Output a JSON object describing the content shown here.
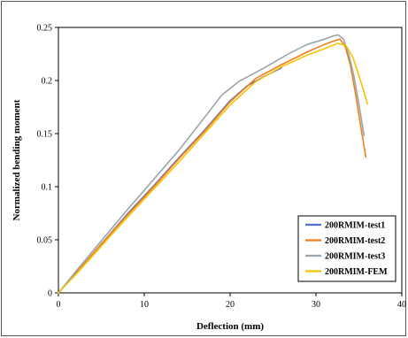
{
  "chart_data": {
    "type": "line",
    "title": "",
    "xlabel": "Deflection (mm)",
    "ylabel": "Normalized bending moment",
    "xlim": [
      0,
      40
    ],
    "ylim": [
      0,
      0.25
    ],
    "xticks": [
      "0",
      "10",
      "20",
      "30",
      "40"
    ],
    "yticks": [
      "0",
      "0.05",
      "0.1",
      "0.15",
      "0.2",
      "0.25"
    ],
    "grid": false,
    "legend_position": "bottom-right",
    "series": [
      {
        "name": "200RMIM-test1",
        "color": "#4a72d8",
        "x": [
          0,
          2,
          5,
          8,
          11,
          14,
          17,
          20,
          22,
          24,
          26
        ],
        "y": [
          0,
          0.018,
          0.046,
          0.074,
          0.1,
          0.127,
          0.153,
          0.181,
          0.195,
          0.204,
          0.212
        ]
      },
      {
        "name": "200RMIM-test2",
        "color": "#f07f1e",
        "x": [
          0,
          2,
          5,
          8,
          11,
          14,
          17,
          20,
          23,
          26,
          29,
          31,
          32,
          32.8,
          33.4,
          34,
          34.6,
          35.2,
          35.8
        ],
        "y": [
          0,
          0.018,
          0.046,
          0.073,
          0.099,
          0.126,
          0.152,
          0.18,
          0.202,
          0.215,
          0.227,
          0.234,
          0.237,
          0.239,
          0.232,
          0.215,
          0.188,
          0.158,
          0.128
        ]
      },
      {
        "name": "200RMIM-test3",
        "color": "#9aa6ae",
        "x": [
          0,
          2,
          5,
          8,
          11,
          14,
          17,
          19,
          21,
          24,
          27,
          29,
          31,
          32,
          32.6,
          33.2,
          33.8,
          34.4,
          35,
          35.6
        ],
        "y": [
          0,
          0.02,
          0.049,
          0.078,
          0.106,
          0.134,
          0.165,
          0.186,
          0.199,
          0.212,
          0.226,
          0.234,
          0.239,
          0.242,
          0.243,
          0.239,
          0.225,
          0.205,
          0.178,
          0.148
        ]
      },
      {
        "name": "200RMIM-FEM",
        "color": "#f5c400",
        "x": [
          0,
          2,
          5,
          8,
          11,
          14,
          17,
          20,
          23,
          26,
          29,
          31,
          32.5,
          33.5,
          34.3,
          35,
          35.6,
          36
        ],
        "y": [
          0,
          0.017,
          0.044,
          0.071,
          0.097,
          0.123,
          0.15,
          0.177,
          0.199,
          0.213,
          0.224,
          0.23,
          0.235,
          0.233,
          0.222,
          0.205,
          0.189,
          0.178
        ]
      }
    ]
  }
}
